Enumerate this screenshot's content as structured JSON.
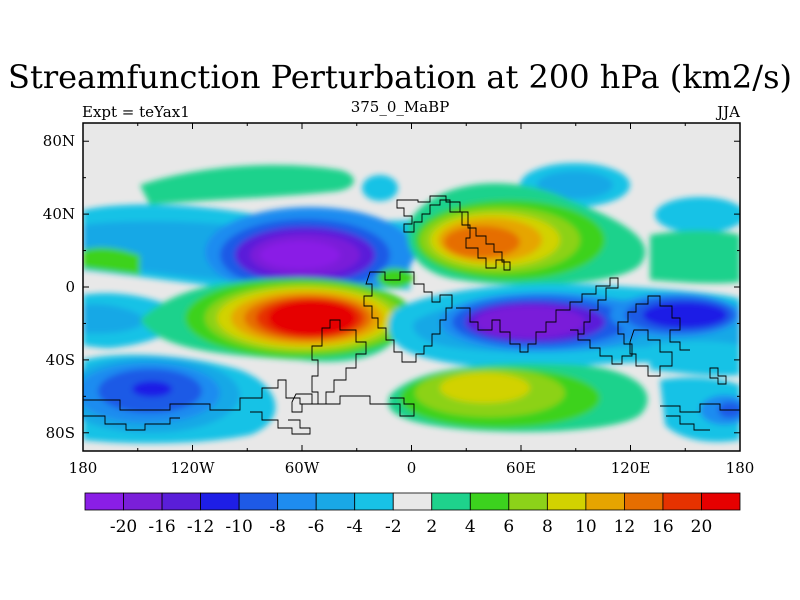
{
  "chart_data": {
    "type": "heatmap",
    "title": "Streamfunction Perturbation at 200 hPa (km2/s)",
    "left_label": "Expt = teYax1",
    "center_label": "375_0_MaBP",
    "right_label": "JJA",
    "x_tick_labels": [
      "180",
      "120W",
      "60W",
      "0",
      "60E",
      "120E",
      "180"
    ],
    "x_tick_values": [
      -180,
      -120,
      -60,
      0,
      60,
      120,
      180
    ],
    "y_tick_labels": [
      "80N",
      "40N",
      "0",
      "40S",
      "80S"
    ],
    "y_tick_values": [
      80,
      40,
      0,
      -40,
      -80
    ],
    "xlim": [
      -180,
      180
    ],
    "ylim": [
      -90,
      90
    ],
    "colorbar": {
      "levels": [
        "-20",
        "-16",
        "-12",
        "-10",
        "-8",
        "-6",
        "-4",
        "-2",
        "2",
        "4",
        "6",
        "8",
        "10",
        "12",
        "16",
        "20"
      ],
      "colors": [
        "#8a1ee6",
        "#7a1fd9",
        "#5a1ed9",
        "#1e1ee6",
        "#1e5ae6",
        "#1e8cf0",
        "#19a8e6",
        "#18c2e6",
        "#e8e8e8",
        "#1ed28c",
        "#3cd21e",
        "#8cd219",
        "#d2d200",
        "#e6a500",
        "#e66e00",
        "#e63200",
        "#e60000"
      ]
    },
    "features": [
      {
        "name": "pacific-south-low",
        "lon": -145,
        "lat": -55,
        "value": -12
      },
      {
        "name": "atlantic-north-low",
        "lon": -75,
        "lat": 15,
        "value": -20
      },
      {
        "name": "atlantic-south-high",
        "lon": -62,
        "lat": -15,
        "value": 20
      },
      {
        "name": "asia-north-high",
        "lon": 45,
        "lat": 20,
        "value": 16
      },
      {
        "name": "indian-south-low",
        "lon": 70,
        "lat": -20,
        "value": -18
      },
      {
        "name": "pacific-west-south-low",
        "lon": 150,
        "lat": -15,
        "value": -12
      },
      {
        "name": "south-indian-high",
        "lon": 30,
        "lat": -60,
        "value": 8
      }
    ]
  }
}
